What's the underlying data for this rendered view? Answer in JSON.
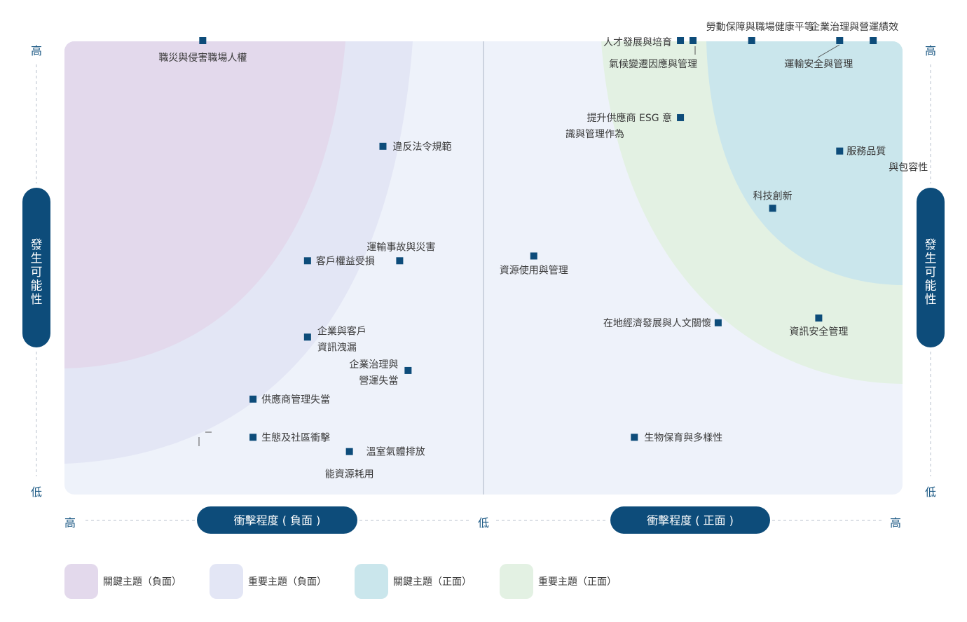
{
  "chart_data": {
    "type": "scatter",
    "title": "",
    "axes": {
      "y_label": "發生可能性",
      "y_high": "高",
      "y_low": "低",
      "x_label_negative": "衝擊程度 ( 負面 )",
      "x_label_positive": "衝擊程度 ( 正面 )",
      "x_high": "高",
      "x_low": "低"
    },
    "zones": [
      {
        "name": "關鍵主題（負面）",
        "color": "#e3d9ec"
      },
      {
        "name": "重要主題（負面）",
        "color": "#e3e6f5"
      },
      {
        "name": "關鍵主題（正面）",
        "color": "#cae6ec"
      },
      {
        "name": "重要主題（正面）",
        "color": "#e3f1e3"
      }
    ],
    "points_negative": [
      {
        "label": "職災與侵害職場人權",
        "impact": 0.67,
        "likelihood": 1.0
      },
      {
        "label": "違反法令規範",
        "impact": 0.24,
        "likelihood": 0.78
      },
      {
        "label": "運輸事故與災害",
        "impact": 0.2,
        "likelihood": 0.54
      },
      {
        "label": "客戶權益受損",
        "impact": 0.42,
        "likelihood": 0.54
      },
      {
        "label": "企業與客戶資訊洩漏",
        "impact": 0.42,
        "likelihood": 0.38
      },
      {
        "label": "企業治理與營運失當",
        "impact": 0.18,
        "likelihood": 0.31
      },
      {
        "label": "供應商管理失當",
        "impact": 0.55,
        "likelihood": 0.25
      },
      {
        "label": "生態及社區衝擊",
        "impact": 0.55,
        "likelihood": 0.17
      },
      {
        "label": "溫室氣體排放",
        "impact": 0.32,
        "likelihood": 0.14
      },
      {
        "label": "能資源耗用",
        "impact": 0.32,
        "likelihood": 0.14
      }
    ],
    "points_positive": [
      {
        "label": "人才發展與培育",
        "impact": 0.47,
        "likelihood": 1.0
      },
      {
        "label": "氣候變遷因應與管理",
        "impact": 0.5,
        "likelihood": 1.0
      },
      {
        "label": "勞動保障與職場健康平等",
        "impact": 0.64,
        "likelihood": 1.0
      },
      {
        "label": "運輸安全與管理",
        "impact": 0.85,
        "likelihood": 1.0
      },
      {
        "label": "企業治理與營運績效",
        "impact": 0.93,
        "likelihood": 1.0
      },
      {
        "label": "提升供應商 ESG 意識與管理作為",
        "impact": 0.47,
        "likelihood": 0.84
      },
      {
        "label": "服務品質與包容性",
        "impact": 0.85,
        "likelihood": 0.77
      },
      {
        "label": "科技創新",
        "impact": 0.69,
        "likelihood": 0.65
      },
      {
        "label": "資源使用與管理",
        "impact": 0.12,
        "likelihood": 0.55
      },
      {
        "label": "在地經濟發展與人文關懷",
        "impact": 0.56,
        "likelihood": 0.41
      },
      {
        "label": "資訊安全管理",
        "impact": 0.8,
        "likelihood": 0.42
      },
      {
        "label": "生物保育與多樣性",
        "impact": 0.36,
        "likelihood": 0.17
      }
    ]
  },
  "legend": [
    {
      "label": "關鍵主題（負面）",
      "color": "#e3d9ec"
    },
    {
      "label": "重要主題（負面）",
      "color": "#e3e6f5"
    },
    {
      "label": "關鍵主題（正面）",
      "color": "#cae6ec"
    },
    {
      "label": "重要主題（正面）",
      "color": "#e3f1e3"
    }
  ],
  "colors": {
    "marker": "#0d4c7a",
    "pill": "#0d4c7a",
    "plot_bg": "#eef2fa",
    "divider": "#a9b4c4",
    "dash": "#b8c2ce"
  }
}
